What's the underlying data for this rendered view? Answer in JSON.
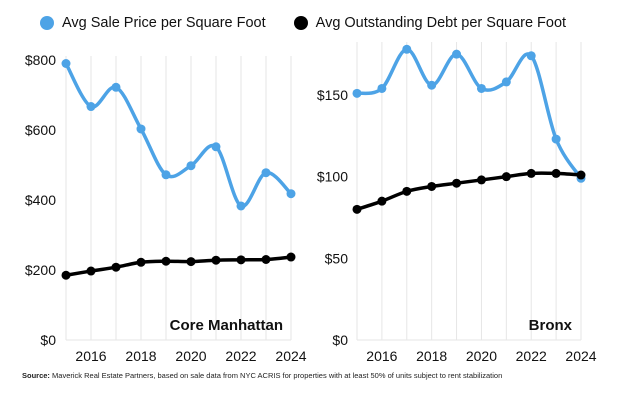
{
  "legend": [
    {
      "label": "Avg Sale Price per Square Foot",
      "color": "#4da3e6"
    },
    {
      "label": "Avg Outstanding Debt per Square Foot",
      "color": "#000000"
    }
  ],
  "source": {
    "label": "Source:",
    "text": "Maverick Real Estate Partners, based on sale data from NYC ACRIS for properties with at least 50% of units subject to rent stabilization"
  },
  "chart_data": [
    {
      "type": "line",
      "title": "Core Manhattan",
      "x": [
        2015,
        2016,
        2017,
        2018,
        2019,
        2020,
        2021,
        2022,
        2023,
        2024
      ],
      "x_ticks": [
        "2016",
        "2018",
        "2020",
        "2022",
        "2024"
      ],
      "x_tick_values": [
        2016,
        2018,
        2020,
        2022,
        2024
      ],
      "ylim": [
        0,
        800
      ],
      "y_ticks": [
        "$0",
        "$200",
        "$400",
        "$600",
        "$800"
      ],
      "y_tick_values": [
        0,
        200,
        400,
        600,
        800
      ],
      "grid": "vertical",
      "series": [
        {
          "name": "Avg Sale Price per Square Foot",
          "color": "#4da3e6",
          "values": [
            790,
            667,
            722,
            603,
            472,
            498,
            552,
            383,
            478,
            418
          ]
        },
        {
          "name": "Avg Outstanding Debt per Square Foot",
          "color": "#000000",
          "values": [
            185,
            197,
            208,
            222,
            225,
            224,
            228,
            229,
            230,
            237
          ]
        }
      ]
    },
    {
      "type": "line",
      "title": "Bronx",
      "x": [
        2015,
        2016,
        2017,
        2018,
        2019,
        2020,
        2021,
        2022,
        2023,
        2024
      ],
      "x_ticks": [
        "2016",
        "2018",
        "2020",
        "2022",
        "2024"
      ],
      "x_tick_values": [
        2016,
        2018,
        2020,
        2022,
        2024
      ],
      "ylim": [
        0,
        180
      ],
      "y_ticks": [
        "$0",
        "$50",
        "$100",
        "$150"
      ],
      "y_tick_values": [
        0,
        50,
        100,
        150
      ],
      "grid": "vertical",
      "series": [
        {
          "name": "Avg Sale Price per Square Foot",
          "color": "#4da3e6",
          "values": [
            151,
            154,
            178,
            156,
            175,
            154,
            158,
            174,
            123,
            99
          ]
        },
        {
          "name": "Avg Outstanding Debt per Square Foot",
          "color": "#000000",
          "values": [
            80,
            85,
            91,
            94,
            96,
            98,
            100,
            102,
            102,
            101
          ]
        }
      ]
    }
  ]
}
